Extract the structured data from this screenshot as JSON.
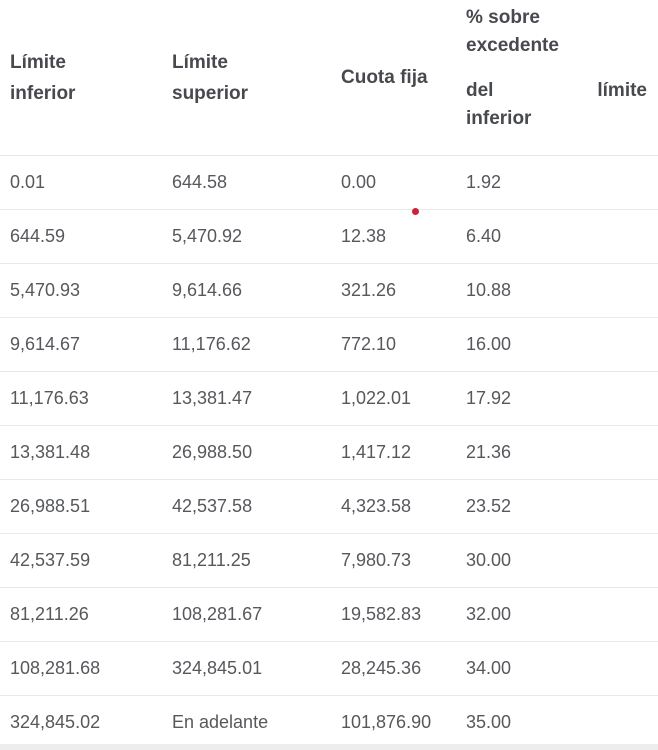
{
  "table": {
    "columns": [
      {
        "label": "Límite inferior",
        "lines": [
          "Límite",
          "inferior"
        ]
      },
      {
        "label": "Límite superior",
        "lines": [
          "Límite",
          "superior"
        ]
      },
      {
        "label": "Cuota fija",
        "lines": [
          "Cuota fija"
        ]
      },
      {
        "label": "% sobre excedente del límite inferior",
        "lines": [
          "% sobre",
          "excedente"
        ],
        "justified_line": {
          "left": "del",
          "right": "límite"
        },
        "last_line": "inferior"
      }
    ],
    "rows": [
      {
        "cells": [
          "0.01",
          "644.58",
          "0.00",
          "1.92"
        ]
      },
      {
        "cells": [
          "644.59",
          "5,470.92",
          "12.38",
          "6.40"
        ]
      },
      {
        "cells": [
          "5,470.93",
          "9,614.66",
          "321.26",
          "10.88"
        ]
      },
      {
        "cells": [
          "9,614.67",
          "11,176.62",
          "772.10",
          "16.00"
        ]
      },
      {
        "cells": [
          "11,176.63",
          "13,381.47",
          "1,022.01",
          "17.92"
        ]
      },
      {
        "cells": [
          "13,381.48",
          "26,988.50",
          "1,417.12",
          "21.36"
        ]
      },
      {
        "cells": [
          "26,988.51",
          "42,537.58",
          "4,323.58",
          "23.52"
        ]
      },
      {
        "cells": [
          "42,537.59",
          "81,211.25",
          "7,980.73",
          "30.00"
        ]
      },
      {
        "cells": [
          "81,211.26",
          "108,281.67",
          "19,582.83",
          "32.00"
        ]
      },
      {
        "cells": [
          "108,281.68",
          "324,845.01",
          "28,245.36",
          "34.00"
        ]
      },
      {
        "cells": [
          "324,845.02",
          "En adelante",
          "101,876.90",
          "35.00"
        ]
      }
    ]
  },
  "colors": {
    "marker_red": "#cc2136",
    "divider": "#e9e9e9",
    "header_text": "#47494e",
    "body_text": "#56585c",
    "bottom_band": "#ededed",
    "background": "#ffffff"
  }
}
